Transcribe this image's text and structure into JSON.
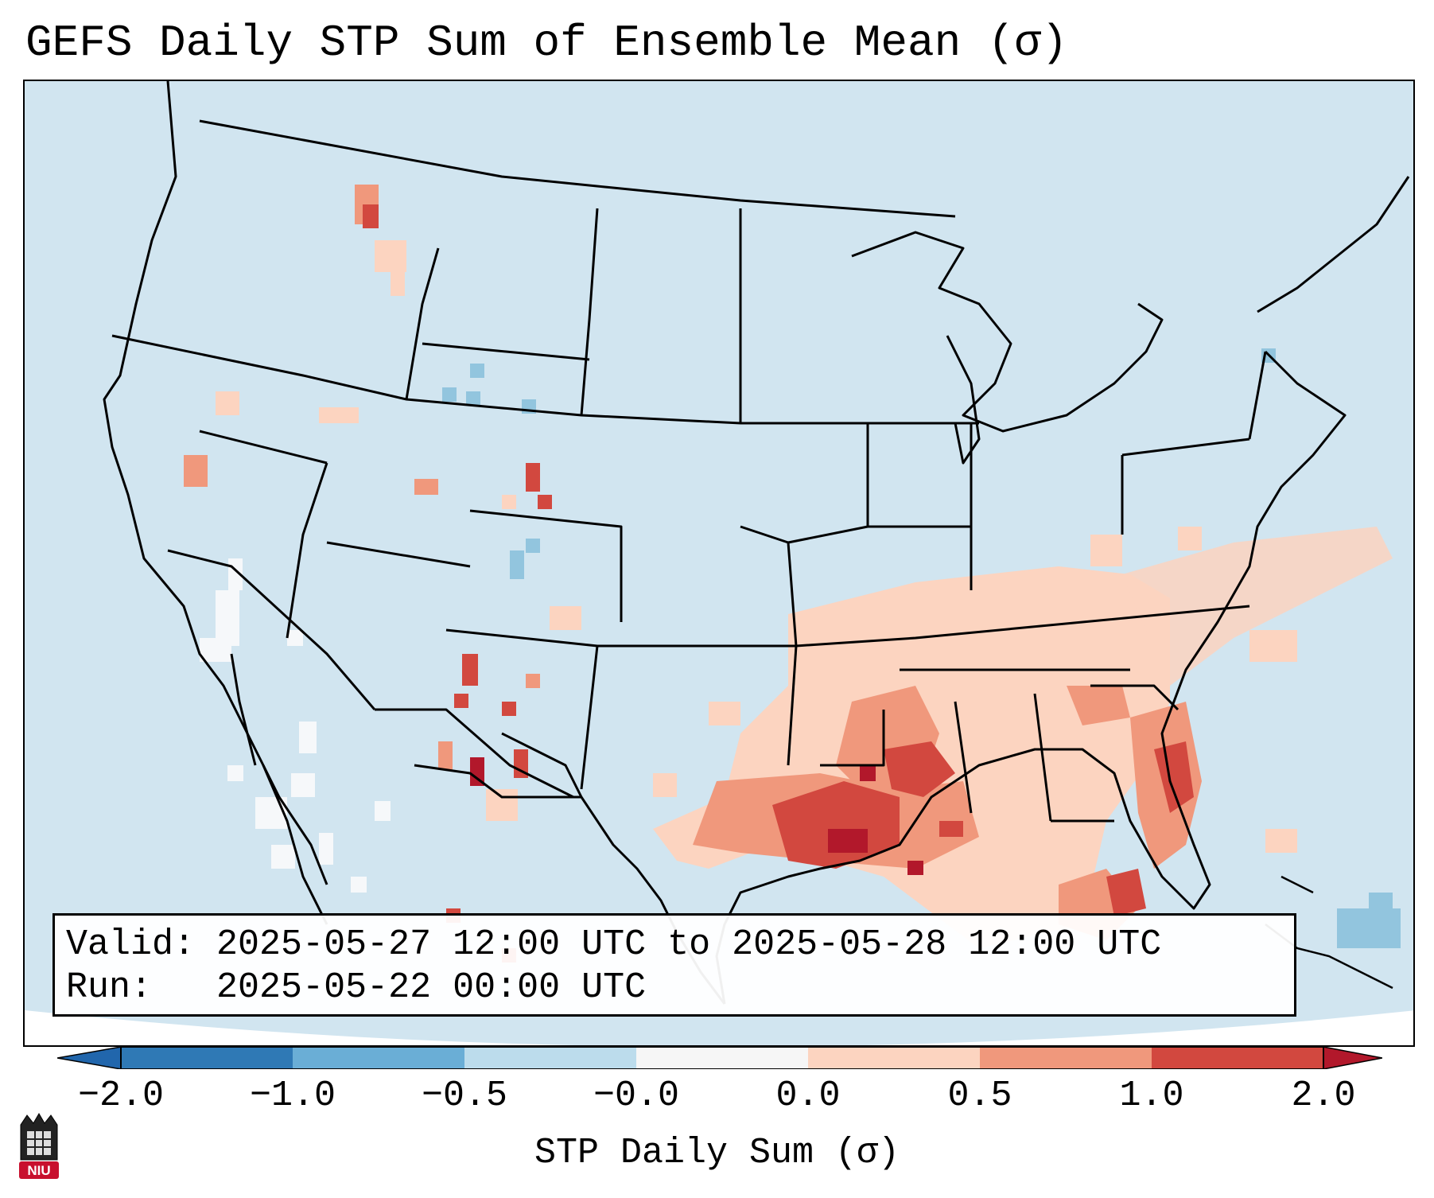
{
  "title": "GEFS Daily STP Sum of Ensemble Mean (σ)",
  "info": {
    "valid_label": "Valid:",
    "valid_value": "2025-05-27 12:00 UTC to 2025-05-28 12:00 UTC",
    "run_label": "Run:",
    "run_value": "2025-05-22 00:00 UTC"
  },
  "colorbar": {
    "label": "STP Daily Sum (σ)",
    "ticks": [
      "−2.0",
      "−1.0",
      "−0.5",
      "−0.0",
      "0.0",
      "0.5",
      "1.0",
      "2.0"
    ],
    "colors": [
      "#2f79b5",
      "#6aaed6",
      "#bcdcec",
      "#f6f6f6",
      "#fcd4c0",
      "#f0987c",
      "#d2483f",
      "#b2182b"
    ],
    "extend": "both"
  },
  "map": {
    "projection": "Lambert Conformal",
    "region": "Contiguous United States",
    "background_color": "#d1e5f0",
    "outline_color": "#000000",
    "bias_region": "Gulf Coast and Southeast"
  },
  "logo": {
    "text": "NIU",
    "color": "#c8102e"
  }
}
